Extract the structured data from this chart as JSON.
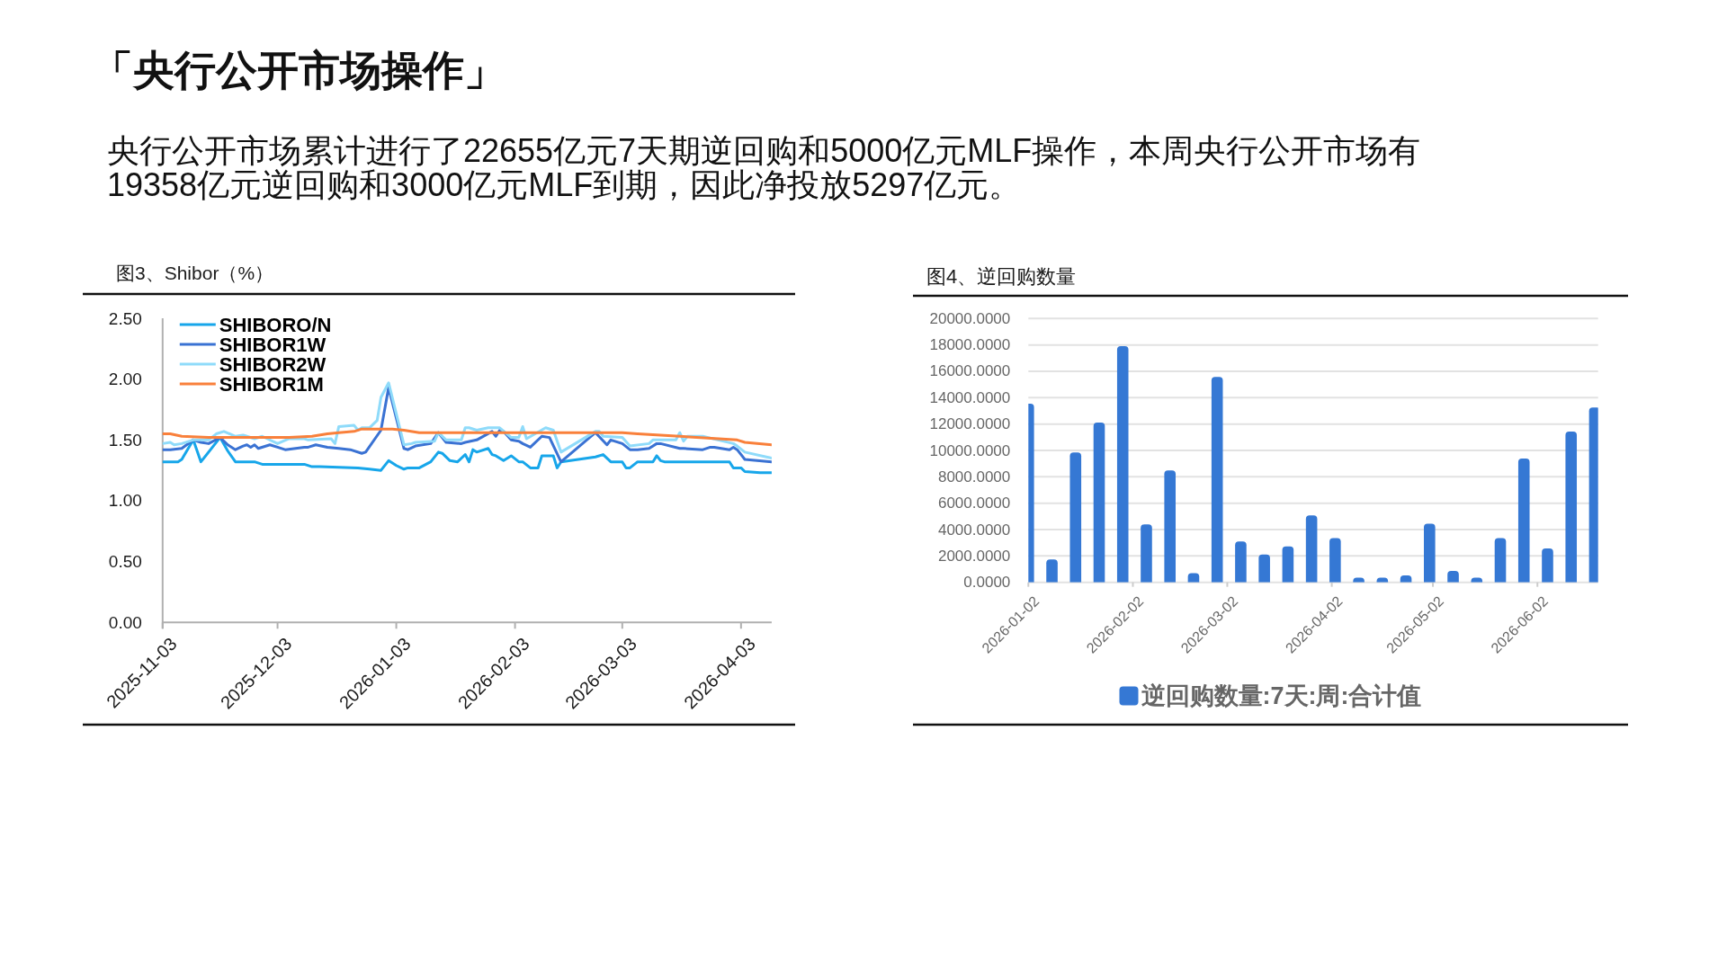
{
  "chart_data": [
    {
      "type": "other",
      "title": "「央行公开市场操作」",
      "subtitle": "央行公开市场累计进行了22655亿元7天期逆回购和5000亿元MLF操作，本周央行公开市场有19358亿元逆回购和3000亿元MLF到期，因此净投放5297亿元。"
    },
    {
      "type": "line",
      "title": "图3、Shibor（%）",
      "series": [
        {
          "name": "SHIBORO/N",
          "color": "#17a6ea",
          "x": [
            "2025-11-03",
            "2025-11-07",
            "2025-11-08",
            "2025-11-11",
            "2025-11-13",
            "2025-11-18",
            "2025-11-20",
            "2025-11-22",
            "2025-11-27",
            "2025-11-29",
            "2025-12-02",
            "2025-12-10",
            "2025-12-12",
            "2025-12-14",
            "2025-12-24",
            "2025-12-27",
            "2025-12-30",
            "2026-01-01",
            "2026-01-03",
            "2026-01-05",
            "2026-01-06",
            "2026-01-09",
            "2026-01-12",
            "2026-01-14",
            "2026-01-15",
            "2026-01-17",
            "2026-01-19",
            "2026-01-21",
            "2026-01-22",
            "2026-01-23",
            "2026-01-24",
            "2026-01-27",
            "2026-01-28",
            "2026-01-29",
            "2026-01-31",
            "2026-02-02",
            "2026-02-04",
            "2026-02-05",
            "2026-02-07",
            "2026-02-09",
            "2026-02-10",
            "2026-02-13",
            "2026-02-14",
            "2026-02-15",
            "2026-02-24",
            "2026-02-26",
            "2026-02-27",
            "2026-02-28",
            "2026-03-03",
            "2026-03-04",
            "2026-03-05",
            "2026-03-07",
            "2026-03-11",
            "2026-03-12",
            "2026-03-13",
            "2026-03-14",
            "2026-03-31",
            "2026-04-01",
            "2026-04-03",
            "2026-04-04",
            "2026-04-08",
            "2026-04-11"
          ],
          "values": [
            1.32,
            1.32,
            1.34,
            1.5,
            1.32,
            1.52,
            1.41,
            1.32,
            1.32,
            1.3,
            1.3,
            1.3,
            1.28,
            1.28,
            1.27,
            1.26,
            1.25,
            1.33,
            1.29,
            1.26,
            1.27,
            1.27,
            1.32,
            1.4,
            1.39,
            1.33,
            1.32,
            1.38,
            1.32,
            1.42,
            1.4,
            1.43,
            1.38,
            1.37,
            1.33,
            1.37,
            1.32,
            1.32,
            1.27,
            1.27,
            1.37,
            1.37,
            1.27,
            1.32,
            1.36,
            1.38,
            1.35,
            1.32,
            1.32,
            1.27,
            1.27,
            1.32,
            1.32,
            1.37,
            1.33,
            1.32,
            1.32,
            1.27,
            1.27,
            1.24,
            1.23,
            1.23
          ]
        },
        {
          "name": "SHIBOR1W",
          "color": "#3a72d3",
          "x": [
            "2025-11-03",
            "2025-11-05",
            "2025-11-08",
            "2025-11-11",
            "2025-11-13",
            "2025-11-15",
            "2025-11-18",
            "2025-11-20",
            "2025-11-22",
            "2025-11-24",
            "2025-11-25",
            "2025-11-26",
            "2025-11-27",
            "2025-11-28",
            "2025-12-01",
            "2025-12-03",
            "2025-12-05",
            "2025-12-10",
            "2025-12-11",
            "2025-12-13",
            "2025-12-16",
            "2025-12-19",
            "2025-12-22",
            "2025-12-25",
            "2025-12-26",
            "2025-12-30",
            "2026-01-01",
            "2026-01-05",
            "2026-01-06",
            "2026-01-08",
            "2026-01-12",
            "2026-01-14",
            "2026-01-16",
            "2026-01-20",
            "2026-01-21",
            "2026-01-24",
            "2026-01-28",
            "2026-01-29",
            "2026-01-30",
            "2026-01-31",
            "2026-02-02",
            "2026-02-04",
            "2026-02-05",
            "2026-02-07",
            "2026-02-10",
            "2026-02-12",
            "2026-02-15",
            "2026-02-24",
            "2026-02-27",
            "2026-02-28",
            "2026-03-03",
            "2026-03-05",
            "2026-03-07",
            "2026-03-10",
            "2026-03-12",
            "2026-03-13",
            "2026-03-18",
            "2026-03-19",
            "2026-03-24",
            "2026-03-26",
            "2026-03-27",
            "2026-03-31",
            "2026-04-01",
            "2026-04-02",
            "2026-04-04",
            "2026-04-11"
          ],
          "values": [
            1.42,
            1.42,
            1.43,
            1.5,
            1.48,
            1.47,
            1.52,
            1.46,
            1.42,
            1.45,
            1.46,
            1.44,
            1.46,
            1.43,
            1.46,
            1.44,
            1.42,
            1.44,
            1.44,
            1.46,
            1.44,
            1.43,
            1.42,
            1.39,
            1.4,
            1.58,
            1.93,
            1.43,
            1.42,
            1.45,
            1.47,
            1.56,
            1.48,
            1.47,
            1.48,
            1.5,
            1.57,
            1.53,
            1.58,
            1.57,
            1.5,
            1.49,
            1.47,
            1.44,
            1.53,
            1.52,
            1.32,
            1.56,
            1.46,
            1.5,
            1.47,
            1.42,
            1.42,
            1.43,
            1.47,
            1.47,
            1.43,
            1.43,
            1.42,
            1.44,
            1.44,
            1.42,
            1.44,
            1.42,
            1.34,
            1.32
          ]
        },
        {
          "name": "SHIBOR2W",
          "color": "#8fdbfa",
          "x": [
            "2025-11-03",
            "2025-11-05",
            "2025-11-06",
            "2025-11-08",
            "2025-11-11",
            "2025-11-15",
            "2025-11-17",
            "2025-11-19",
            "2025-11-22",
            "2025-11-24",
            "2025-11-25",
            "2025-11-27",
            "2025-11-29",
            "2025-12-03",
            "2025-12-06",
            "2025-12-10",
            "2025-12-11",
            "2025-12-17",
            "2025-12-18",
            "2025-12-19",
            "2025-12-23",
            "2025-12-24",
            "2025-12-25",
            "2025-12-27",
            "2025-12-29",
            "2025-12-30",
            "2026-01-01",
            "2026-01-05",
            "2026-01-07",
            "2026-01-08",
            "2026-01-13",
            "2026-01-14",
            "2026-01-16",
            "2026-01-20",
            "2026-01-21",
            "2026-01-22",
            "2026-01-24",
            "2026-01-27",
            "2026-01-30",
            "2026-02-02",
            "2026-02-04",
            "2026-02-05",
            "2026-02-06",
            "2026-02-11",
            "2026-02-13",
            "2026-02-15",
            "2026-02-24",
            "2026-02-25",
            "2026-02-26",
            "2026-03-03",
            "2026-03-05",
            "2026-03-10",
            "2026-03-11",
            "2026-03-17",
            "2026-03-18",
            "2026-03-19",
            "2026-03-20",
            "2026-03-24",
            "2026-04-01",
            "2026-04-02",
            "2026-04-04",
            "2026-04-11"
          ],
          "values": [
            1.47,
            1.48,
            1.46,
            1.47,
            1.5,
            1.5,
            1.55,
            1.57,
            1.53,
            1.54,
            1.53,
            1.51,
            1.53,
            1.47,
            1.51,
            1.51,
            1.5,
            1.51,
            1.47,
            1.61,
            1.62,
            1.58,
            1.6,
            1.6,
            1.66,
            1.85,
            1.97,
            1.46,
            1.47,
            1.48,
            1.49,
            1.56,
            1.5,
            1.5,
            1.6,
            1.6,
            1.58,
            1.6,
            1.6,
            1.52,
            1.52,
            1.61,
            1.51,
            1.6,
            1.58,
            1.4,
            1.57,
            1.57,
            1.53,
            1.52,
            1.45,
            1.47,
            1.5,
            1.5,
            1.56,
            1.49,
            1.53,
            1.53,
            1.47,
            1.45,
            1.4,
            1.35
          ]
        },
        {
          "name": "SHIBOR1M",
          "color": "#f9803b",
          "x": [
            "2025-11-03",
            "2025-11-05",
            "2025-11-08",
            "2025-11-15",
            "2025-12-06",
            "2025-12-12",
            "2025-12-16",
            "2025-12-19",
            "2025-12-23",
            "2025-12-25",
            "2026-01-02",
            "2026-01-05",
            "2026-01-09",
            "2026-03-03",
            "2026-03-07",
            "2026-03-18",
            "2026-04-02",
            "2026-04-04",
            "2026-04-11"
          ],
          "values": [
            1.55,
            1.55,
            1.53,
            1.52,
            1.52,
            1.53,
            1.55,
            1.56,
            1.57,
            1.59,
            1.59,
            1.58,
            1.56,
            1.56,
            1.55,
            1.53,
            1.5,
            1.48,
            1.46
          ]
        }
      ],
      "xlim": [
        "2025-11-03",
        "2026-04-11"
      ],
      "xticks": [
        "2025-11-03",
        "2025-12-03",
        "2026-01-03",
        "2026-02-03",
        "2026-03-03",
        "2026-04-03"
      ],
      "ylim": [
        0,
        2.5
      ],
      "yticks": [
        {
          "value": 0,
          "label": "0.00"
        },
        {
          "value": 0.5,
          "label": "0.50"
        },
        {
          "value": 1,
          "label": "1.00"
        },
        {
          "value": 1.5,
          "label": "1.50"
        },
        {
          "value": 2,
          "label": "2.00"
        },
        {
          "value": 2.5,
          "label": "2.50"
        }
      ],
      "legend": "top left",
      "line_style": "solid"
    },
    {
      "type": "bar",
      "title": "图4、逆回购数量",
      "x": [
        "2026-01-02",
        "2026-01-09",
        "2026-01-16",
        "2026-01-23",
        "2026-01-30",
        "2026-02-06",
        "2026-02-13",
        "2026-02-20",
        "2026-02-27",
        "2026-03-06",
        "2026-03-13",
        "2026-03-20",
        "2026-03-27",
        "2026-04-03",
        "2026-04-10",
        "2026-04-17",
        "2026-04-24",
        "2026-05-01",
        "2026-05-08",
        "2026-05-15",
        "2026-05-22",
        "2026-05-29",
        "2026-06-05",
        "2026-06-12",
        "2026-06-19"
      ],
      "series": [
        {
          "name": "逆回购数量:7天:周:合计值",
          "color": "#3578d4",
          "values": [
            13550,
            1730,
            9840,
            12110,
            17910,
            4390,
            8480,
            700,
            15570,
            3090,
            2110,
            2730,
            5070,
            3360,
            360,
            360,
            520,
            4450,
            860,
            360,
            3360,
            9390,
            2570,
            11430,
            13250
          ]
        }
      ],
      "xlim": [
        "2026-01-02",
        "2026-06-20"
      ],
      "xticks": [
        "2026-01-02",
        "2026-02-02",
        "2026-03-02",
        "2026-04-02",
        "2026-05-02",
        "2026-06-02"
      ],
      "ylim": [
        0,
        20000
      ],
      "yticks": [
        {
          "value": 0,
          "label": "0.0000"
        },
        {
          "value": 2000,
          "label": "2000.0000"
        },
        {
          "value": 4000,
          "label": "4000.0000"
        },
        {
          "value": 6000,
          "label": "6000.0000"
        },
        {
          "value": 8000,
          "label": "8000.0000"
        },
        {
          "value": 10000,
          "label": "10000.0000"
        },
        {
          "value": 12000,
          "label": "12000.0000"
        },
        {
          "value": 14000,
          "label": "14000.0000"
        },
        {
          "value": 16000,
          "label": "16000.0000"
        },
        {
          "value": 18000,
          "label": "18000.0000"
        },
        {
          "value": 20000,
          "label": "20000.0000"
        }
      ],
      "grid": "y",
      "legend": "bottom"
    }
  ]
}
